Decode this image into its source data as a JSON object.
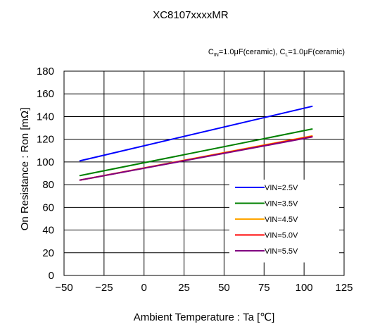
{
  "chart_data": {
    "type": "line",
    "title": "XC8107xxxxMR",
    "subtitle": {
      "part1": "C",
      "part1_sub": "IN",
      "part2": "=1.0μF(ceramic), C",
      "part2_sub": "L",
      "part3": "=1.0μF(ceramic)"
    },
    "xlabel": "Ambient Temperature : Ta [℃]",
    "ylabel": "On Resistance : Ron [mΩ]",
    "xlim": [
      -50,
      125
    ],
    "ylim": [
      0,
      180
    ],
    "xticks": [
      "−50",
      "−25",
      "0",
      "25",
      "50",
      "75",
      "100",
      "125"
    ],
    "yticks": [
      "0",
      "20",
      "40",
      "60",
      "80",
      "100",
      "120",
      "140",
      "160",
      "180"
    ],
    "grid": true,
    "legend_position": "lower-right",
    "series": [
      {
        "name": "VIN=2.5V",
        "color": "#0000ff",
        "x": [
          -40,
          105
        ],
        "y": [
          101,
          149
        ]
      },
      {
        "name": "VIN=3.5V",
        "color": "#008000",
        "x": [
          -40,
          105
        ],
        "y": [
          88,
          129
        ]
      },
      {
        "name": "VIN=4.5V",
        "color": "#ffa500",
        "x": [
          -40,
          105
        ],
        "y": [
          84,
          123
        ]
      },
      {
        "name": "VIN=5.0V",
        "color": "#ff0000",
        "x": [
          -40,
          105
        ],
        "y": [
          84,
          122.5
        ]
      },
      {
        "name": "VIN=5.5V",
        "color": "#800080",
        "x": [
          -40,
          105
        ],
        "y": [
          84,
          122
        ]
      }
    ]
  }
}
